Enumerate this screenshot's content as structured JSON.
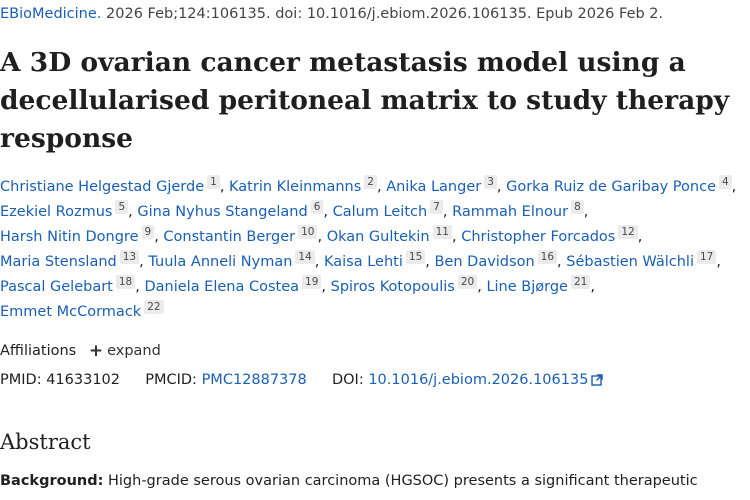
{
  "citation": {
    "journal": "EBioMedicine.",
    "details": " 2026 Feb;124:106135. doi: 10.1016/j.ebiom.2026.106135. Epub 2026 Feb 2."
  },
  "title": "A 3D ovarian cancer metastasis model using a decellularised peritoneal matrix to study therapy response",
  "authors": [
    {
      "name": "Christiane Helgestad Gjerde",
      "aff": "1"
    },
    {
      "name": "Katrin Kleinmanns",
      "aff": "2"
    },
    {
      "name": "Anika Langer",
      "aff": "3"
    },
    {
      "name": "Gorka Ruiz de Garibay Ponce",
      "aff": "4"
    },
    {
      "name": "Ezekiel Rozmus",
      "aff": "5"
    },
    {
      "name": "Gina Nyhus Stangeland",
      "aff": "6"
    },
    {
      "name": "Calum Leitch",
      "aff": "7"
    },
    {
      "name": "Rammah Elnour",
      "aff": "8"
    },
    {
      "name": "Harsh Nitin Dongre",
      "aff": "9"
    },
    {
      "name": "Constantin Berger",
      "aff": "10"
    },
    {
      "name": "Okan Gultekin",
      "aff": "11"
    },
    {
      "name": "Christopher Forcados",
      "aff": "12"
    },
    {
      "name": "Maria Stensland",
      "aff": "13"
    },
    {
      "name": "Tuula Anneli Nyman",
      "aff": "14"
    },
    {
      "name": "Kaisa Lehti",
      "aff": "15"
    },
    {
      "name": "Ben Davidson",
      "aff": "16"
    },
    {
      "name": "Sébastien Wälchli",
      "aff": "17"
    },
    {
      "name": "Pascal Gelebart",
      "aff": "18"
    },
    {
      "name": "Daniela Elena Costea",
      "aff": "19"
    },
    {
      "name": "Spiros Kotopoulis",
      "aff": "20"
    },
    {
      "name": "Line Bjørge",
      "aff": "21"
    },
    {
      "name": "Emmet McCormack",
      "aff": "22"
    }
  ],
  "affiliations": {
    "label": "Affiliations",
    "expand_label": "expand"
  },
  "ids": {
    "pmid_label": "PMID:",
    "pmid": "41633102",
    "pmcid_label": "PMCID:",
    "pmcid": "PMC12887378",
    "doi_label": "DOI:",
    "doi": "10.1016/j.ebiom.2026.106135"
  },
  "abstract": {
    "heading": "Abstract",
    "background_label": "Background:",
    "background_text": " High-grade serous ovarian carcinoma (HGSOC) presents a significant therapeutic"
  },
  "icons": {
    "expand": "plus-icon",
    "external_link": "external-link-icon"
  },
  "colors": {
    "link": "#1a5fb4",
    "badge_bg": "#ebebeb",
    "text": "#212121"
  }
}
